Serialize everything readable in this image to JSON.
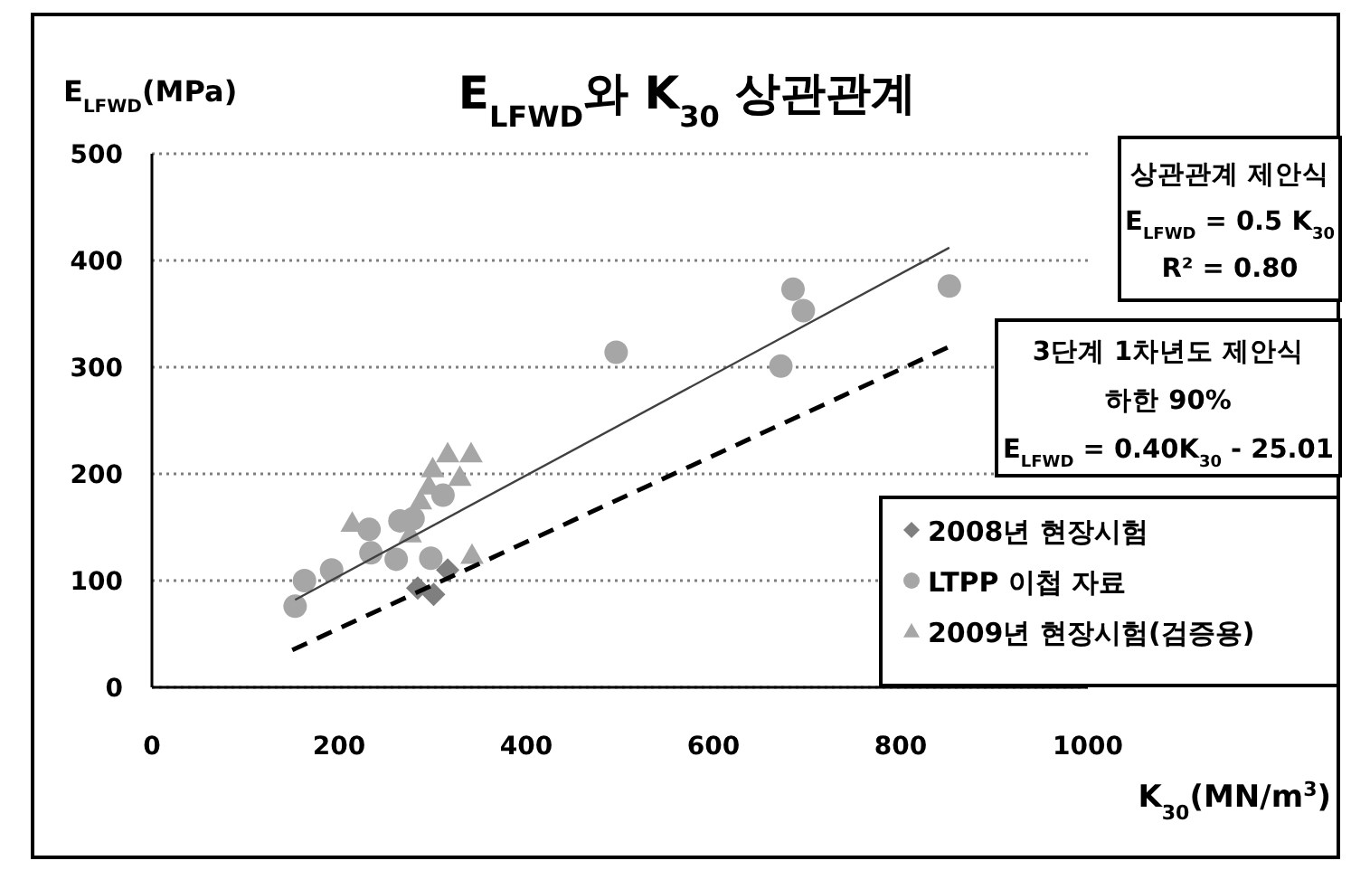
{
  "chart_data": {
    "type": "scatter",
    "title": "E$_{LFWD}$와 K$_{30}$ 상관관계",
    "xlabel": "K$_{30}$(MN/m$^{3}$)",
    "ylabel": "E$_{LFWD}$(MPa)",
    "xlim": [
      0,
      1000
    ],
    "xticks": [
      0,
      200,
      400,
      600,
      800,
      1000
    ],
    "ylim": [
      0,
      500
    ],
    "yticks": [
      0,
      100,
      200,
      300,
      400,
      500
    ],
    "grid": "y",
    "legend": "bottom right",
    "series": [
      {
        "name": "2008년 현장시험",
        "color": "#7f7f7f",
        "marker": "diamond",
        "x": [
          284,
          301,
          316
        ],
        "values": [
          93,
          87,
          110
        ]
      },
      {
        "name": "LTPP 이첩 자료",
        "color": "#a6a6a6",
        "marker": "circle",
        "x": [
          153,
          163,
          192,
          232,
          234,
          261,
          265,
          279,
          298,
          311,
          496,
          672,
          685,
          696,
          852
        ],
        "values": [
          76,
          100,
          110,
          148,
          126,
          120,
          156,
          158,
          121,
          180,
          314,
          301,
          373,
          353,
          376
        ]
      },
      {
        "name": "2009년 현장시험(검증용)",
        "color": "#a6a6a6",
        "marker": "triangle",
        "x": [
          214,
          276,
          287,
          296,
          300,
          316,
          329,
          341,
          342
        ],
        "values": [
          154,
          144,
          175,
          189,
          205,
          219,
          197,
          219,
          124
        ]
      },
      {
        "type": "line",
        "color": "#404040",
        "line_style": "solid",
        "marker": "none",
        "x": [
          153,
          852
        ],
        "values": [
          82,
          412
        ]
      },
      {
        "type": "line",
        "color": "#000000",
        "line_style": "dashed",
        "marker": "none",
        "x": [
          150,
          854
        ],
        "values": [
          35,
          320
        ]
      }
    ],
    "annotations": [
      "상관관계 제안식",
      "E$_{LFWD}$ = 0.5 K$_{30}$",
      "R² = 0.80",
      "3단계  1차년도 제안식",
      "하한 90%",
      "E$_{LFWD}$ = 0.40K$_{30}$ - 25.01"
    ]
  }
}
